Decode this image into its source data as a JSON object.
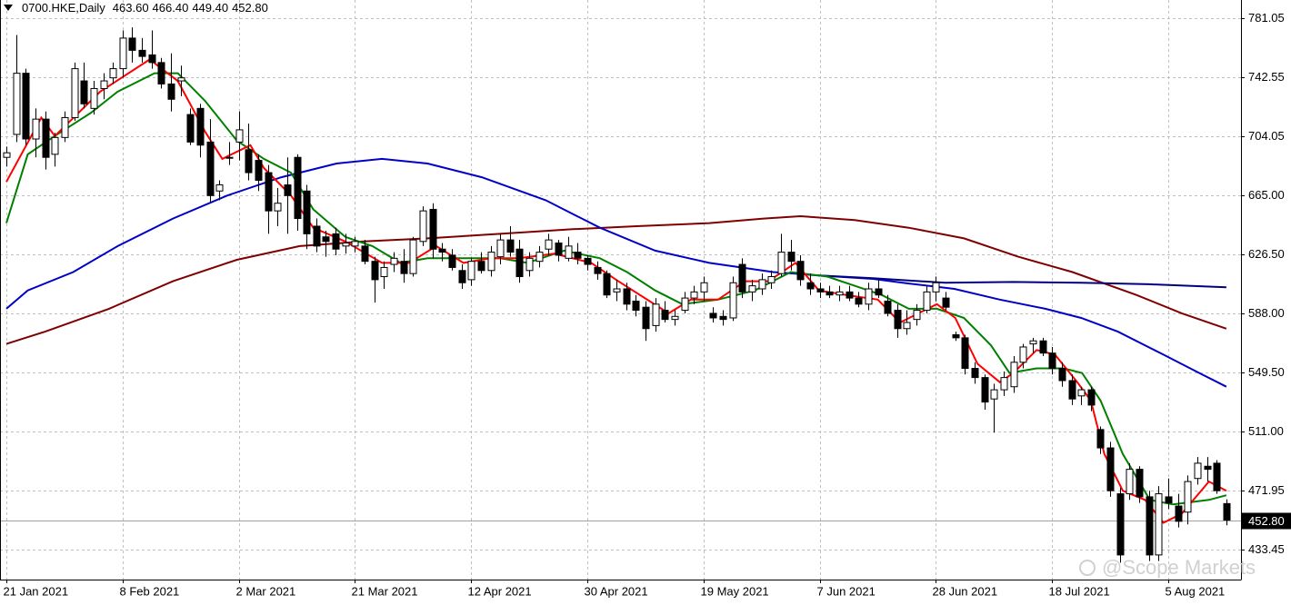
{
  "chart_data": {
    "type": "candlestick",
    "title": "0700.HKE,Daily",
    "title_values": [
      "463.60",
      "466.40",
      "449.40",
      "452.80"
    ],
    "watermark": "@Scope Markets",
    "ylim": [
      413.9,
      792.9
    ],
    "yticks": [
      781.05,
      742.55,
      704.05,
      {
        "value": 665,
        "label": "665.00"
      },
      {
        "value": 626.5,
        "label": "626.50"
      },
      {
        "value": 588,
        "label": "588.00"
      },
      {
        "value": 549.5,
        "label": "549.50"
      },
      {
        "value": 511,
        "label": "511.00"
      },
      471.95,
      433.45
    ],
    "xlim": [
      -0.66,
      127.51
    ],
    "grid": true,
    "last_price": {
      "value": 452.8,
      "label": "452.80"
    },
    "up_color": "#ffffff",
    "down_color": "#000000",
    "categories": [
      "21 Jan 2021",
      null,
      null,
      null,
      null,
      null,
      null,
      null,
      null,
      null,
      null,
      null,
      "8 Feb 2021",
      null,
      null,
      null,
      null,
      null,
      null,
      null,
      null,
      null,
      null,
      null,
      "2 Mar 2021",
      null,
      null,
      null,
      null,
      null,
      null,
      null,
      null,
      null,
      null,
      null,
      "21 Mar 2021",
      null,
      null,
      null,
      null,
      null,
      null,
      null,
      null,
      null,
      null,
      null,
      "12 Apr 2021",
      null,
      null,
      null,
      null,
      null,
      null,
      null,
      null,
      null,
      null,
      null,
      "30 Apr 2021",
      null,
      null,
      null,
      null,
      null,
      null,
      null,
      null,
      null,
      null,
      null,
      "19 May 2021",
      null,
      null,
      null,
      null,
      null,
      null,
      null,
      null,
      null,
      null,
      null,
      "7 Jun 2021",
      null,
      null,
      null,
      null,
      null,
      null,
      null,
      null,
      null,
      null,
      null,
      "28 Jun 2021",
      null,
      null,
      null,
      null,
      null,
      null,
      null,
      null,
      null,
      null,
      null,
      "18 Jul 2021",
      null,
      null,
      null,
      null,
      null,
      null,
      null,
      null,
      null,
      null,
      null,
      "5 Aug 2021",
      null,
      null,
      null,
      null,
      null,
      null
    ],
    "ohlc": [
      [
        690,
        697,
        684,
        693
      ],
      [
        705,
        770,
        700,
        745
      ],
      [
        745,
        748,
        698,
        702
      ],
      [
        702,
        722,
        690,
        715
      ],
      [
        715,
        720,
        682,
        690
      ],
      [
        692,
        706,
        684,
        703
      ],
      [
        703,
        720,
        700,
        716
      ],
      [
        716,
        752,
        714,
        748
      ],
      [
        740,
        752,
        722,
        725
      ],
      [
        722,
        740,
        718,
        735
      ],
      [
        735,
        745,
        728,
        740
      ],
      [
        742,
        752,
        738,
        748
      ],
      [
        748,
        773,
        742,
        768
      ],
      [
        768,
        775,
        752,
        760
      ],
      [
        760,
        768,
        752,
        756
      ],
      [
        757,
        773,
        748,
        752
      ],
      [
        752,
        755,
        735,
        738
      ],
      [
        738,
        758,
        720,
        728
      ],
      [
        740,
        750,
        730,
        742
      ],
      [
        718,
        722,
        698,
        700
      ],
      [
        722,
        725,
        690,
        698
      ],
      [
        700,
        715,
        660,
        665
      ],
      [
        668,
        675,
        662,
        672
      ],
      [
        690,
        700,
        685,
        690
      ],
      [
        700,
        720,
        688,
        708
      ],
      [
        695,
        712,
        675,
        680
      ],
      [
        688,
        692,
        668,
        675
      ],
      [
        680,
        685,
        640,
        655
      ],
      [
        655,
        670,
        645,
        660
      ],
      [
        672,
        690,
        640,
        665
      ],
      [
        690,
        692,
        642,
        650
      ],
      [
        668,
        672,
        630,
        640
      ],
      [
        645,
        650,
        628,
        632
      ],
      [
        638,
        642,
        625,
        635
      ],
      [
        640,
        644,
        626,
        630
      ],
      [
        632,
        640,
        627,
        634
      ],
      [
        632,
        638,
        628,
        635
      ],
      [
        632,
        636,
        620,
        622
      ],
      [
        622,
        625,
        595,
        610
      ],
      [
        612,
        622,
        604,
        618
      ],
      [
        620,
        628,
        615,
        624
      ],
      [
        622,
        630,
        608,
        614
      ],
      [
        614,
        638,
        612,
        636
      ],
      [
        635,
        658,
        632,
        655
      ],
      [
        656,
        660,
        624,
        630
      ],
      [
        630,
        634,
        622,
        628
      ],
      [
        626,
        630,
        616,
        618
      ],
      [
        616,
        620,
        604,
        608
      ],
      [
        610,
        624,
        606,
        622
      ],
      [
        622,
        628,
        614,
        616
      ],
      [
        616,
        632,
        612,
        628
      ],
      [
        625,
        640,
        620,
        636
      ],
      [
        636,
        645,
        625,
        628
      ],
      [
        630,
        636,
        608,
        612
      ],
      [
        616,
        628,
        612,
        624
      ],
      [
        622,
        632,
        618,
        628
      ],
      [
        630,
        640,
        626,
        636
      ],
      [
        634,
        636,
        622,
        626
      ],
      [
        624,
        638,
        622,
        632
      ],
      [
        628,
        634,
        620,
        624
      ],
      [
        624,
        626,
        616,
        620
      ],
      [
        618,
        622,
        610,
        614
      ],
      [
        614,
        616,
        598,
        600
      ],
      [
        602,
        610,
        596,
        604
      ],
      [
        604,
        608,
        590,
        594
      ],
      [
        596,
        600,
        586,
        590
      ],
      [
        592,
        596,
        570,
        578
      ],
      [
        580,
        598,
        576,
        594
      ],
      [
        590,
        596,
        582,
        584
      ],
      [
        584,
        590,
        580,
        586
      ],
      [
        590,
        602,
        588,
        598
      ],
      [
        598,
        606,
        594,
        602
      ],
      [
        602,
        612,
        596,
        608
      ],
      [
        588,
        592,
        582,
        585
      ],
      [
        586,
        590,
        580,
        584
      ],
      [
        585,
        612,
        583,
        608
      ],
      [
        620,
        624,
        598,
        602
      ],
      [
        602,
        610,
        596,
        606
      ],
      [
        604,
        614,
        600,
        610
      ],
      [
        608,
        616,
        604,
        612
      ],
      [
        614,
        640,
        612,
        628
      ],
      [
        628,
        636,
        616,
        622
      ],
      [
        622,
        626,
        606,
        610
      ],
      [
        608,
        614,
        600,
        604
      ],
      [
        604,
        608,
        598,
        602
      ],
      [
        602,
        606,
        598,
        600
      ],
      [
        600,
        606,
        596,
        602
      ],
      [
        602,
        606,
        596,
        598
      ],
      [
        598,
        602,
        592,
        594
      ],
      [
        594,
        608,
        590,
        604
      ],
      [
        604,
        610,
        598,
        600
      ],
      [
        596,
        600,
        586,
        588
      ],
      [
        590,
        594,
        572,
        578
      ],
      [
        578,
        590,
        574,
        582
      ],
      [
        584,
        594,
        580,
        590
      ],
      [
        590,
        606,
        588,
        602
      ],
      [
        602,
        612,
        596,
        608
      ],
      [
        598,
        602,
        590,
        592
      ],
      [
        574,
        576,
        570,
        572
      ],
      [
        572,
        574,
        548,
        552
      ],
      [
        552,
        556,
        542,
        546
      ],
      [
        546,
        548,
        525,
        530
      ],
      [
        532,
        542,
        510,
        538
      ],
      [
        538,
        550,
        534,
        546
      ],
      [
        540,
        560,
        536,
        556
      ],
      [
        556,
        568,
        552,
        566
      ],
      [
        568,
        572,
        562,
        570
      ],
      [
        570,
        572,
        560,
        562
      ],
      [
        562,
        566,
        548,
        552
      ],
      [
        552,
        556,
        540,
        544
      ],
      [
        544,
        548,
        528,
        532
      ],
      [
        534,
        540,
        528,
        538
      ],
      [
        538,
        540,
        524,
        528
      ],
      [
        512,
        514,
        496,
        500
      ],
      [
        500,
        504,
        468,
        472
      ],
      [
        470,
        474,
        425,
        430
      ],
      [
        470,
        490,
        466,
        486
      ],
      [
        486,
        488,
        464,
        468
      ],
      [
        468,
        472,
        426,
        430
      ],
      [
        430,
        475,
        426,
        470
      ],
      [
        468,
        480,
        460,
        464
      ],
      [
        462,
        470,
        448,
        452
      ],
      [
        458,
        482,
        450,
        478
      ],
      [
        480,
        494,
        476,
        490
      ],
      [
        488,
        494,
        478,
        486
      ],
      [
        490,
        492,
        470,
        472
      ],
      [
        463.6,
        466.4,
        449.4,
        452.8
      ]
    ],
    "lines": [
      {
        "color": "#800000",
        "x": [
          0,
          4,
          10.6,
          17.2,
          23.8,
          30.3,
          36.9,
          43.5,
          51,
          58.5,
          65.1,
          72.6,
          78.2,
          82,
          87.6,
          93.2,
          98.9,
          104.5,
          110.1,
          116.7,
          121.4,
          126
        ],
        "values": [
          568,
          576,
          591,
          609,
          623,
          632,
          635,
          637,
          640,
          643,
          645,
          647,
          650,
          651.5,
          649,
          644,
          637,
          625,
          615,
          600,
          588,
          578
        ]
      },
      {
        "color": "#0000c8",
        "x": [
          0,
          2.2,
          6.9,
          11.5,
          17.2,
          22.8,
          28.4,
          34.1,
          38.8,
          43.5,
          49.1,
          55.7,
          61.3,
          67,
          72.6,
          79.2,
          83.9,
          89.5,
          93.2,
          97.9,
          102.6,
          107.3,
          111,
          114.8,
          119.5,
          123.2,
          126
        ],
        "values": [
          591,
          603,
          615,
          632,
          650,
          665,
          677,
          686,
          689,
          686,
          677,
          662,
          644,
          629,
          621,
          615,
          612.8,
          610.5,
          607.5,
          604,
          597,
          591,
          585,
          576,
          561,
          549,
          540
        ]
      },
      {
        "color": "#000080",
        "x": [
          83.9,
          89.5,
          97,
          104,
          111,
          118,
          126
        ],
        "values": [
          612.8,
          611,
          608,
          608.5,
          608,
          607,
          605
        ]
      },
      {
        "color": "#008000",
        "x": [
          0,
          2.2,
          5,
          8.7,
          11.5,
          15.3,
          17.7,
          20.5,
          23.8,
          26.6,
          29.4,
          31.7,
          35,
          37.8,
          40.7,
          43.5,
          47.2,
          51,
          53.8,
          57.6,
          61.3,
          64.1,
          67,
          69.8,
          73.5,
          77.3,
          81,
          84.8,
          87.6,
          90.4,
          93.2,
          96.1,
          98.9,
          101.7,
          103.6,
          106.4,
          109.2,
          111.1,
          113,
          115.3,
          118.1,
          120.5,
          124.2,
          126
        ],
        "values": [
          647,
          692,
          704,
          719,
          733,
          745,
          745,
          727,
          701,
          689,
          680,
          656,
          638,
          632,
          621,
          624,
          624,
          624,
          621,
          629,
          624,
          615,
          603,
          594,
          597,
          603,
          615,
          612,
          606,
          600,
          591,
          591,
          585,
          567,
          549,
          552,
          552,
          549,
          531,
          496,
          466,
          463,
          466,
          469
        ]
      },
      {
        "color": "#ff0000",
        "x": [
          0,
          3.6,
          5,
          9.7,
          14.8,
          17.7,
          20.5,
          22.3,
          25.2,
          26.6,
          29.4,
          31.7,
          35,
          38.8,
          41.6,
          44.4,
          47.2,
          50,
          52.9,
          56.6,
          60.4,
          63.2,
          68.4,
          70.7,
          73.5,
          76.3,
          78.7,
          81.5,
          83.9,
          86.7,
          90,
          92.3,
          94.2,
          96.1,
          98,
          100.3,
          102.6,
          104,
          106.4,
          108.3,
          110.6,
          112,
          113.4,
          115.3,
          117.6,
          119.5,
          121.4,
          124.2,
          126
        ],
        "values": [
          674,
          716,
          704,
          733,
          754,
          740,
          707,
          689,
          698,
          683,
          665,
          644,
          635,
          621,
          621,
          632,
          621,
          624,
          624,
          627,
          621,
          609,
          588,
          597,
          597,
          609,
          609,
          621,
          603,
          600,
          597,
          582,
          588,
          594,
          585,
          555,
          543,
          549,
          564,
          561,
          543,
          531,
          496,
          472,
          466,
          451,
          457,
          478,
          472
        ]
      }
    ]
  }
}
